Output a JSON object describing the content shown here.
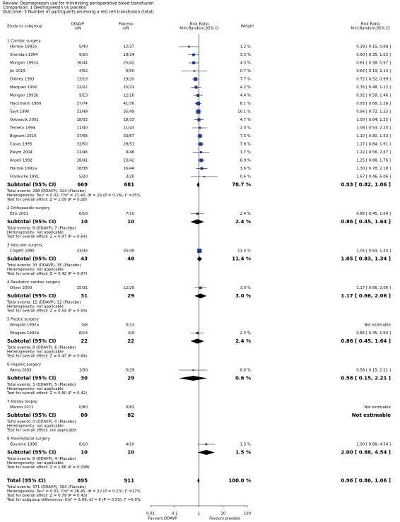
{
  "chart_data": {
    "type": "forest",
    "review": "Review:  Desmopressin use for minimising perioperative blood transfusion",
    "comparison": "Comparison:  1 Desmopressin vs placebo",
    "outcome": "Outcome:  5 Number of participants receiving a red cell transfusion (total)",
    "columns": {
      "study": "Study or subgroup",
      "ddavp": "DDAVP",
      "ddavp_unit": "n/N",
      "placebo": "Placebo",
      "placebo_unit": "n/N",
      "plot": "Risk Ratio",
      "plot_method": "M-H,Random,95% CI",
      "weight": "Weight",
      "effect": "Risk Ratio",
      "effect_method": "M-H,Random,95% CI"
    },
    "groups": [
      {
        "label": "1 Cardiac surgery",
        "studies": [
          {
            "name": "Horrow 1991b",
            "ddavp": "5/40",
            "placebo": "12/37",
            "weight": 1.2,
            "weight_label": "1.2 %",
            "rr": 0.39,
            "lo": 0.15,
            "hi": 0.99,
            "ci_label": "0.39 [ 0.15, 0.99 ]"
          },
          {
            "name": "Sheridan 1994",
            "ddavp": "9/20",
            "placebo": "18/24",
            "weight": 3.3,
            "weight_label": "3.3 %",
            "rr": 0.6,
            "lo": 0.35,
            "hi": 1.03,
            "ci_label": "0.60 [ 0.35, 1.03 ]"
          },
          {
            "name": "Mongan 1992a",
            "ddavp": "16/44",
            "placebo": "25/42",
            "weight": 4.3,
            "weight_label": "4.3 %",
            "rr": 0.61,
            "lo": 0.38,
            "hi": 0.97,
            "ci_label": "0.61 [ 0.38, 0.97 ]"
          },
          {
            "name": "Jin 2015",
            "ddavp": "4/52",
            "placebo": "6/50",
            "weight": 0.7,
            "weight_label": "0.7 %",
            "rr": 0.64,
            "lo": 0.19,
            "hi": 2.14,
            "ci_label": "0.64 [ 0.19, 2.14 ]"
          },
          {
            "name": "Dilthey 1993",
            "ddavp": "13/19",
            "placebo": "19/20",
            "weight": 7.7,
            "weight_label": "7.7 %",
            "rr": 0.72,
            "lo": 0.52,
            "hi": 0.99,
            "ci_label": "0.72 [ 0.52, 0.99 ]"
          },
          {
            "name": "Marquez 1992",
            "ddavp": "12/22",
            "placebo": "15/21",
            "weight": 4.2,
            "weight_label": "4.2 %",
            "rr": 0.76,
            "lo": 0.48,
            "hi": 1.22,
            "ci_label": "0.76 [ 0.48, 1.22 ]"
          },
          {
            "name": "Mongan 1992b",
            "ddavp": "9/13",
            "placebo": "12/16",
            "weight": 4.4,
            "weight_label": "4.4 %",
            "rr": 0.92,
            "lo": 0.58,
            "hi": 1.46,
            "ci_label": "0.92 [ 0.58, 1.46 ]"
          },
          {
            "name": "Hackmann 1989",
            "ddavp": "37/74",
            "placebo": "41/76",
            "weight": 8.1,
            "weight_label": "8.1 %",
            "rr": 0.93,
            "lo": 0.68,
            "hi": 1.26,
            "ci_label": "0.93 [ 0.68, 1.26 ]"
          },
          {
            "name": "Spyt 1990",
            "ddavp": "33/49",
            "placebo": "35/49",
            "weight": 10.1,
            "weight_label": "10.1 %",
            "rr": 0.94,
            "lo": 0.72,
            "hi": 1.23,
            "ci_label": "0.94 [ 0.72, 1.23 ]"
          },
          {
            "name": "Ozkisacik 2001",
            "ddavp": "18/33",
            "placebo": "18/33",
            "weight": 4.7,
            "weight_label": "4.7 %",
            "rr": 1.0,
            "lo": 0.64,
            "hi": 1.55,
            "ci_label": "1.00 [ 0.64, 1.55 ]"
          },
          {
            "name": "Temeck 1994",
            "ddavp": "11/40",
            "placebo": "11/43",
            "weight": 2.0,
            "weight_label": "2.0 %",
            "rr": 1.08,
            "lo": 0.53,
            "hi": 2.2,
            "ci_label": "1.08 [ 0.53, 2.20 ]"
          },
          {
            "name": "Bignami 2016",
            "ddavp": "37/68",
            "placebo": "33/67",
            "weight": 7.5,
            "weight_label": "7.5 %",
            "rr": 1.1,
            "lo": 0.8,
            "hi": 1.53,
            "ci_label": "1.10 [ 0.80, 1.53 ]"
          },
          {
            "name": "Casas 1995",
            "ddavp": "32/50",
            "placebo": "28/51",
            "weight": 7.6,
            "weight_label": "7.6 %",
            "rr": 1.17,
            "lo": 0.84,
            "hi": 1.61,
            "ci_label": "1.17 [ 0.84, 1.61 ]"
          },
          {
            "name": "Pleym 2004",
            "ddavp": "11/46",
            "placebo": "9/46",
            "weight": 1.7,
            "weight_label": "1.7 %",
            "rr": 1.22,
            "lo": 0.56,
            "hi": 2.67,
            "ci_label": "1.22 [ 0.56, 2.67 ]"
          },
          {
            "name": "Ansell 1992",
            "ddavp": "28/41",
            "placebo": "23/42",
            "weight": 6.9,
            "weight_label": "6.9 %",
            "rr": 1.25,
            "lo": 0.88,
            "hi": 1.76,
            "ci_label": "1.25 [ 0.88, 1.76 ]"
          },
          {
            "name": "Horrow 1991a",
            "ddavp": "18/38",
            "placebo": "16/44",
            "weight": 3.6,
            "weight_label": "3.6 %",
            "rr": 1.3,
            "lo": 0.78,
            "hi": 2.18,
            "ci_label": "1.30 [ 0.78, 2.18 ]"
          },
          {
            "name": "Frankville 1991",
            "ddavp": "5/20",
            "placebo": "3/20",
            "weight": 0.6,
            "weight_label": "0.6 %",
            "rr": 1.67,
            "lo": 0.46,
            "hi": 6.06,
            "ci_label": "1.67 [ 0.46, 6.06 ]"
          }
        ],
        "subtotal": {
          "label": "Subtotal (95% CI)",
          "n_ddavp": 669,
          "n_placebo": 681,
          "weight": 78.7,
          "weight_label": "78.7 %",
          "rr": 0.93,
          "lo": 0.82,
          "hi": 1.06,
          "ci_label": "0.93 [ 0.82, 1.06 ]"
        },
        "notes": [
          "Total events: 298 (DDAVP), 324 (Placebo)",
          "Heterogeneity: Tau² = 0.02; Chi² = 21.40, df = 16 (P = 0.16); I² =25%",
          "Test for overall effect: Z = 1.09 (P = 0.28)"
        ]
      },
      {
        "label": "2 Orthopaedic surgery",
        "studies": [
          {
            "name": "Ellis 2001",
            "ddavp": "6/10",
            "placebo": "7/10",
            "weight": 2.4,
            "weight_label": "2.4 %",
            "rr": 0.86,
            "lo": 0.45,
            "hi": 1.64,
            "ci_label": "0.86 [ 0.45, 1.64 ]"
          }
        ],
        "subtotal": {
          "label": "Subtotal (95% CI)",
          "n_ddavp": 10,
          "n_placebo": 10,
          "weight": 2.4,
          "weight_label": "2.4 %",
          "rr": 0.86,
          "lo": 0.45,
          "hi": 1.64,
          "ci_label": "0.86 [ 0.45, 1.64 ]"
        },
        "notes": [
          "Total events: 6 (DDAVP), 7 (Placebo)",
          "Heterogeneity: not applicable",
          "Test for overall effect: Z = 0.47 (P = 0.64)"
        ]
      },
      {
        "label": "3 Vascular surgery",
        "studies": [
          {
            "name": "Clagett 1995",
            "ddavp": "33/43",
            "placebo": "35/48",
            "weight": 11.4,
            "weight_label": "11.4 %",
            "rr": 1.05,
            "lo": 0.83,
            "hi": 1.34,
            "ci_label": "1.05 [ 0.83, 1.34 ]"
          }
        ],
        "subtotal": {
          "label": "Subtotal (95% CI)",
          "n_ddavp": 43,
          "n_placebo": 48,
          "weight": 11.4,
          "weight_label": "11.4 %",
          "rr": 1.05,
          "lo": 0.83,
          "hi": 1.34,
          "ci_label": "1.05 [ 0.83, 1.34 ]"
        },
        "notes": [
          "Total events: 33 (DDAVP), 35 (Placebo)",
          "Heterogeneity: not applicable",
          "Test for overall effect: Z = 0.42 (P = 0.67)"
        ]
      },
      {
        "label": "4 Paediatric cardiac surgery",
        "studies": [
          {
            "name": "Oliver 2000",
            "ddavp": "15/31",
            "placebo": "12/29",
            "weight": 3.0,
            "weight_label": "3.0 %",
            "rr": 1.17,
            "lo": 0.66,
            "hi": 2.06,
            "ci_label": "1.17 [ 0.66, 2.06 ]"
          }
        ],
        "subtotal": {
          "label": "Subtotal (95% CI)",
          "n_ddavp": 31,
          "n_placebo": 29,
          "weight": 3.0,
          "weight_label": "3.0 %",
          "rr": 1.17,
          "lo": 0.66,
          "hi": 2.06,
          "ci_label": "1.17 [ 0.66, 2.06 ]"
        },
        "notes": [
          "Total events: 15 (DDAVP), 12 (Placebo)",
          "Heterogeneity: not applicable",
          "Test for overall effect: Z = 0.54 (P = 0.59)"
        ]
      },
      {
        "label": "5 Plastic surgery",
        "studies": [
          {
            "name": "Wingate 1992a",
            "ddavp": "0/8",
            "placebo": "0/13",
            "ci_label": "Not estimable"
          },
          {
            "name": "Wingate 1992b",
            "ddavp": "8/14",
            "placebo": "6/9",
            "weight": 2.4,
            "weight_label": "2.4 %",
            "rr": 0.86,
            "lo": 0.45,
            "hi": 1.64,
            "ci_label": "0.86 [ 0.45, 1.64 ]"
          }
        ],
        "subtotal": {
          "label": "Subtotal (95% CI)",
          "n_ddavp": 22,
          "n_placebo": 22,
          "weight": 2.4,
          "weight_label": "2.4 %",
          "rr": 0.86,
          "lo": 0.45,
          "hi": 1.64,
          "ci_label": "0.86 [ 0.45, 1.64 ]"
        },
        "notes": [
          "Total events: 8 (DDAVP), 6 (Placebo)",
          "Heterogeneity: not applicable",
          "Test for overall effect: Z = 0.47 (P = 0.64)"
        ]
      },
      {
        "label": "6 Hepatic surgery",
        "studies": [
          {
            "name": "Wong 2003",
            "ddavp": "3/30",
            "placebo": "5/29",
            "weight": 0.6,
            "weight_label": "0.6 %",
            "rr": 0.58,
            "lo": 0.15,
            "hi": 2.21,
            "ci_label": "0.58 [ 0.15, 2.21 ]"
          }
        ],
        "subtotal": {
          "label": "Subtotal (95% CI)",
          "n_ddavp": 30,
          "n_placebo": 29,
          "weight": 0.6,
          "weight_label": "0.6 %",
          "rr": 0.58,
          "lo": 0.15,
          "hi": 2.21,
          "ci_label": "0.58 [ 0.15, 2.21 ]"
        },
        "notes": [
          "Total events: 3 (DDAVP), 5 (Placebo)",
          "Heterogeneity: not applicable",
          "Test for overall effect: Z = 0.80 (P = 0.42)"
        ]
      },
      {
        "label": "7 Kidney biopsy",
        "studies": [
          {
            "name": "Manno 2011",
            "ddavp": "0/80",
            "placebo": "0/82",
            "ci_label": "Not estimable"
          }
        ],
        "subtotal": {
          "label": "Subtotal (95% CI)",
          "n_ddavp": 80,
          "n_placebo": 82,
          "ci_label": "Not estimable"
        },
        "notes": [
          "Total events: 0 (DDAVP), 0 (Placebo)",
          "Heterogeneity: not applicable",
          "Test for overall effect: not applicable"
        ]
      },
      {
        "label": "8 Maxillofacial surgery",
        "studies": [
          {
            "name": "Guyuron 1996",
            "ddavp": "8/10",
            "placebo": "4/10",
            "weight": 1.5,
            "weight_label": "1.5 %",
            "rr": 2.0,
            "lo": 0.88,
            "hi": 4.54,
            "ci_label": "2.00 [ 0.88, 4.54 ]"
          }
        ],
        "subtotal": {
          "label": "Subtotal (95% CI)",
          "n_ddavp": 10,
          "n_placebo": 10,
          "weight": 1.5,
          "weight_label": "1.5 %",
          "rr": 2.0,
          "lo": 0.88,
          "hi": 4.54,
          "ci_label": "2.00 [ 0.88, 4.54 ]"
        },
        "notes": [
          "Total events: 8 (DDAVP), 4 (Placebo)",
          "Heterogeneity: not applicable",
          "Test for overall effect: Z = 1.66 (P = 0.098)"
        ]
      }
    ],
    "total": {
      "label": "Total (95% CI)",
      "n_ddavp": 895,
      "n_placebo": 911,
      "weight": 100.0,
      "weight_label": "100.0 %",
      "rr": 0.96,
      "lo": 0.86,
      "hi": 1.06,
      "ci_label": "0.96 [ 0.86, 1.06 ]"
    },
    "total_notes": [
      "Total events: 371 (DDAVP), 393 (Placebo)",
      "Heterogeneity: Tau² = 0.01; Chi² = 26.45, df = 22 (P = 0.23); I² =17%",
      "Test for overall effect: Z = 0.79 (P = 0.43)",
      "Test for subgroup differences: Chi² = 5.09, df = 6 (P = 0.53), I² =0.0%"
    ],
    "xlim": [
      0.01,
      100
    ],
    "xticks": [
      0.01,
      0.1,
      1,
      10,
      100
    ],
    "log_x": true,
    "xlabel_left": "Favours DDAVP",
    "xlabel_right": "Favours placebo",
    "square_color": "#1f3a93",
    "diamond_color": "#000000"
  }
}
